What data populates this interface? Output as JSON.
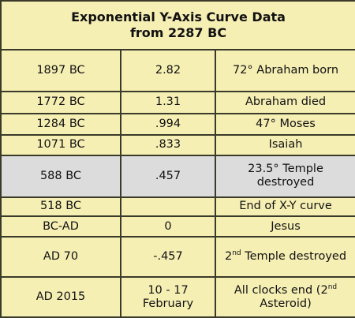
{
  "header": {
    "title": "Exponential Y-Axis Curve Data",
    "subtitle": "from 2287 BC"
  },
  "table": {
    "rows": [
      [
        "1897 BC",
        "2.82",
        "72° Abraham born"
      ],
      [
        "1772 BC",
        "1.31",
        "Abraham died"
      ],
      [
        "1284 BC",
        ".994",
        "47° Moses"
      ],
      [
        "1071 BC",
        ".833",
        "Isaiah"
      ],
      [
        "588 BC",
        ".457",
        "23.5° Temple destroyed"
      ],
      [
        "518 BC",
        null,
        "End of X-Y curve"
      ],
      [
        "BC-AD",
        "0",
        "Jesus"
      ],
      [
        "AD 70",
        "-.457",
        [
          {
            "text": "2"
          },
          {
            "text": "nd",
            "sup": true
          },
          {
            "text": " Temple destroyed"
          }
        ]
      ],
      [
        "AD 2015",
        "10 - 17 February",
        [
          {
            "text": "All clocks end ("
          },
          {
            "text": "2"
          },
          {
            "text": "nd",
            "sup": true
          },
          {
            "text": " Asteroid)"
          }
        ]
      ]
    ]
  }
}
